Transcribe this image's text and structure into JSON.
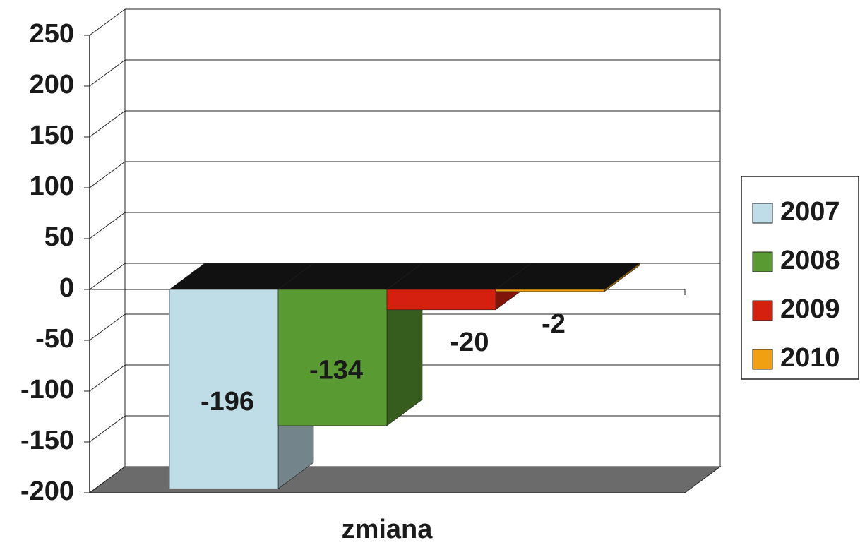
{
  "chart_data": {
    "type": "bar3d",
    "categories": [
      "zmiana"
    ],
    "series": [
      {
        "name": "2007",
        "color": "#bfdde6",
        "values": [
          -196
        ]
      },
      {
        "name": "2008",
        "color": "#5a9a32",
        "values": [
          -134
        ]
      },
      {
        "name": "2009",
        "color": "#d52010",
        "values": [
          -20
        ]
      },
      {
        "name": "2010",
        "color": "#f0a010",
        "values": [
          -2
        ]
      }
    ],
    "ylim": [
      -200,
      250
    ],
    "yticks": [
      -200,
      -150,
      -100,
      -50,
      0,
      50,
      100,
      150,
      200,
      250
    ],
    "grid": true,
    "legend": "right"
  }
}
